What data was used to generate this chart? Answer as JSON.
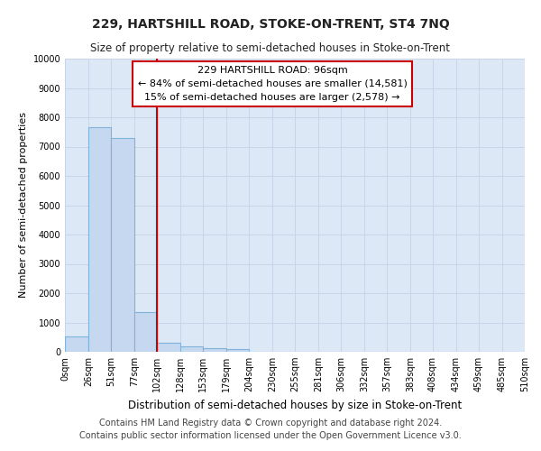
{
  "title": "229, HARTSHILL ROAD, STOKE-ON-TRENT, ST4 7NQ",
  "subtitle": "Size of property relative to semi-detached houses in Stoke-on-Trent",
  "xlabel": "Distribution of semi-detached houses by size in Stoke-on-Trent",
  "ylabel": "Number of semi-detached properties",
  "footer_line1": "Contains HM Land Registry data © Crown copyright and database right 2024.",
  "footer_line2": "Contains public sector information licensed under the Open Government Licence v3.0.",
  "annotation_line1": "229 HARTSHILL ROAD: 96sqm",
  "annotation_line2": "← 84% of semi-detached houses are smaller (14,581)",
  "annotation_line3": "15% of semi-detached houses are larger (2,578) →",
  "property_size": 96,
  "bin_edges": [
    0,
    26,
    51,
    77,
    102,
    128,
    153,
    179,
    204,
    230,
    255,
    281,
    306,
    332,
    357,
    383,
    408,
    434,
    459,
    485,
    510
  ],
  "bar_heights": [
    530,
    7650,
    7280,
    1350,
    310,
    170,
    130,
    100,
    0,
    0,
    0,
    0,
    0,
    0,
    0,
    0,
    0,
    0,
    0,
    0
  ],
  "bar_color": "#c5d8f0",
  "bar_edge_color": "#7fb3dc",
  "vline_color": "#cc0000",
  "vline_x": 102,
  "ylim": [
    0,
    10000
  ],
  "yticks": [
    0,
    1000,
    2000,
    3000,
    4000,
    5000,
    6000,
    7000,
    8000,
    9000,
    10000
  ],
  "grid_color": "#c8d4e8",
  "bg_color": "#dce8f5",
  "title_fontsize": 10,
  "subtitle_fontsize": 8.5,
  "tick_label_fontsize": 7,
  "ylabel_fontsize": 8,
  "xlabel_fontsize": 8.5,
  "annotation_fontsize": 8,
  "footer_fontsize": 7
}
